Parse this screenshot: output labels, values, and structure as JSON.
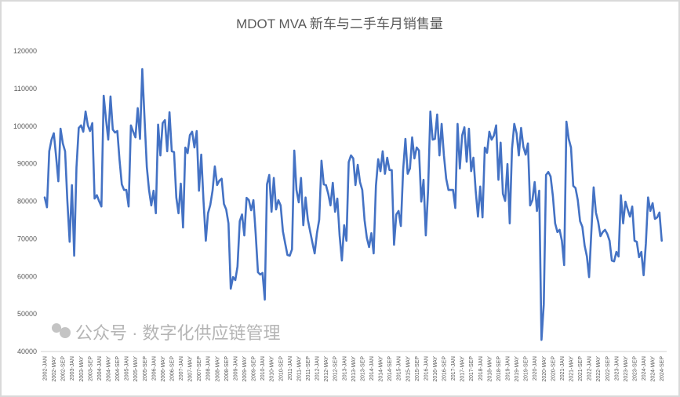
{
  "chart_data": {
    "type": "line",
    "title": "MDOT MVA 新车与二手车月销售量",
    "xlabel": "",
    "ylabel": "",
    "ylim": [
      40000,
      120000
    ],
    "yticks": [
      40000,
      50000,
      60000,
      70000,
      80000,
      90000,
      100000,
      110000,
      120000
    ],
    "grid": false,
    "legend": "none",
    "x_start": "2002-JAN",
    "x_end": "2024-SEP",
    "x_frequency": "monthly",
    "xtick_labels": [
      "2002-JAN",
      "2002-MAY",
      "2002-SEP",
      "2003-JAN",
      "2003-MAY",
      "2003-SEP",
      "2004-JAN",
      "2004-MAY",
      "2004-SEP",
      "2005-JAN",
      "2005-MAY",
      "2005-SEP",
      "2006-JAN",
      "2006-MAY",
      "2006-SEP",
      "2007-JAN",
      "2007-MAY",
      "2007-SEP",
      "2008-JAN",
      "2008-MAY",
      "2008-SEP",
      "2009-JAN",
      "2009-MAY",
      "2009-SEP",
      "2010-JAN",
      "2010-MAY",
      "2010-SEP",
      "2011-JAN",
      "2011-MAY",
      "2011-SEP",
      "2012-JAN",
      "2012-MAY",
      "2012-SEP",
      "2013-JAN",
      "2013-MAY",
      "2013-SEP",
      "2014-JAN",
      "2014-MAY",
      "2014-SEP",
      "2015-JAN",
      "2015-MAY",
      "2015-SEP",
      "2016-JAN",
      "2016-MAY",
      "2016-SEP",
      "2017-JAN",
      "2017-MAY",
      "2017-SEP",
      "2018-JAN",
      "2018-MAY",
      "2018-SEP",
      "2019-JAN",
      "2019-MAY",
      "2019-SEP",
      "2020-JAN",
      "2020-MAY",
      "2020-SEP",
      "2021-JAN",
      "2021-MAY",
      "2021-SEP",
      "2022-JAN",
      "2022-MAY",
      "2022-SEP",
      "2023-JAN",
      "2023-MAY",
      "2023-SEP",
      "2024-JAN",
      "2024-MAY",
      "2024-SEP"
    ],
    "series": [
      {
        "name": "月销售量",
        "color": "#4472c4",
        "values": [
          81000,
          78400,
          93300,
          96400,
          98100,
          92000,
          85300,
          99300,
          95400,
          93300,
          80000,
          69200,
          84300,
          65500,
          89000,
          99500,
          100200,
          98500,
          103900,
          100200,
          98700,
          100800,
          80700,
          81600,
          80000,
          78600,
          108100,
          102000,
          96400,
          107900,
          99100,
          98300,
          98700,
          91000,
          84500,
          83000,
          83000,
          78600,
          100200,
          98500,
          97000,
          104800,
          96600,
          115200,
          102000,
          89100,
          83000,
          78900,
          82800,
          76800,
          100400,
          92200,
          100800,
          101600,
          93300,
          103700,
          93300,
          93100,
          81000,
          76800,
          84700,
          73000,
          94300,
          92800,
          97600,
          98500,
          94300,
          98700,
          82800,
          92400,
          80000,
          69500,
          76800,
          79000,
          82800,
          89300,
          84300,
          85500,
          86000,
          79300,
          77800,
          74100,
          56700,
          59800,
          59000,
          62600,
          74700,
          76500,
          70900,
          80900,
          80300,
          77600,
          80300,
          71300,
          61100,
          60500,
          60900,
          53800,
          84500,
          87000,
          77200,
          86200,
          77800,
          80300,
          78900,
          72000,
          68800,
          65700,
          65500,
          67200,
          93500,
          83000,
          79700,
          86200,
          73600,
          81000,
          75100,
          72000,
          69000,
          66100,
          71500,
          75100,
          90800,
          84500,
          84300,
          82000,
          78900,
          84900,
          77200,
          80700,
          70900,
          64200,
          73600,
          69500,
          90400,
          92200,
          91400,
          84300,
          89700,
          85100,
          83000,
          75000,
          70300,
          67800,
          71500,
          66100,
          84100,
          91200,
          88000,
          93300,
          87300,
          91600,
          88300,
          88300,
          68400,
          76500,
          77400,
          73400,
          88300,
          96600,
          87300,
          88700,
          97000,
          91400,
          94300,
          93500,
          79900,
          85700,
          70900,
          82800,
          103900,
          96400,
          96600,
          103100,
          92200,
          100600,
          92200,
          86000,
          83000,
          83000,
          83000,
          78200,
          100600,
          88700,
          97500,
          99700,
          90500,
          99300,
          88000,
          91600,
          82800,
          75900,
          83900,
          75700,
          94300,
          92900,
          98500,
          96400,
          97500,
          100200,
          85700,
          95600,
          82000,
          80100,
          89900,
          74100,
          93900,
          100600,
          98100,
          92200,
          99500,
          94500,
          92400,
          95400,
          78900,
          80300,
          85100,
          77400,
          82800,
          43100,
          52500,
          87000,
          87800,
          86600,
          81400,
          74100,
          71800,
          72400,
          69500,
          63000,
          101200,
          96600,
          94300,
          84100,
          83500,
          80300,
          74700,
          73200,
          68200,
          65300,
          59800,
          72000,
          83700,
          77000,
          74500,
          70700,
          71800,
          72400,
          71300,
          69500,
          64200,
          64000,
          66500,
          65300,
          81600,
          74100,
          79900,
          77800,
          75900,
          78600,
          69500,
          69200,
          65100,
          66500,
          60300,
          68800,
          81000,
          77400,
          79500,
          75300,
          75700,
          77000,
          69500
        ]
      }
    ]
  },
  "watermark": "公众号 · 数字化供应链管理",
  "colors": {
    "line": "#4472c4",
    "axis": "#d9d9d9",
    "text": "#595959"
  }
}
